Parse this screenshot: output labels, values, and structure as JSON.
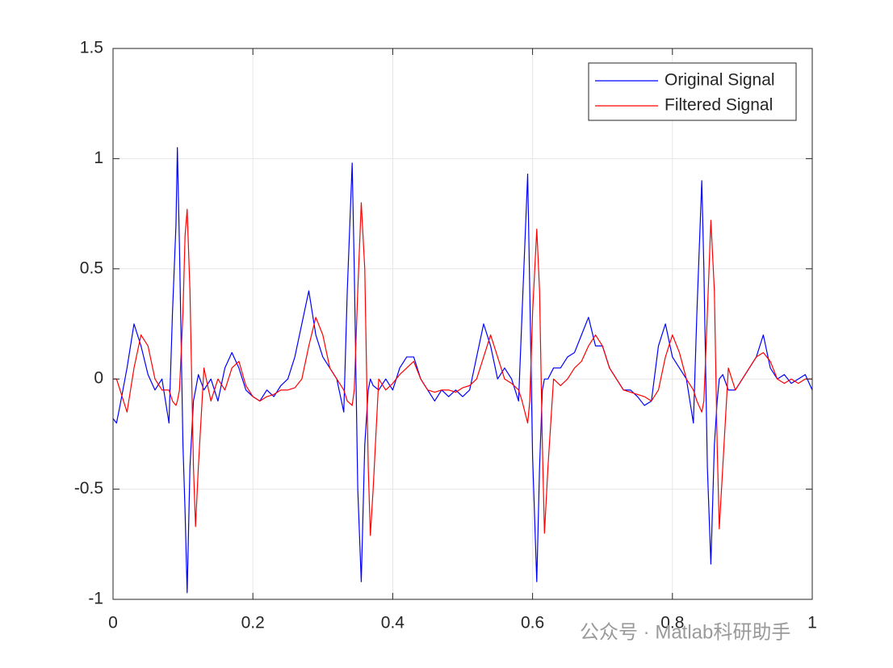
{
  "chart_data": {
    "type": "line",
    "x": [
      0,
      0.005,
      0.01,
      0.02,
      0.03,
      0.04,
      0.05,
      0.06,
      0.07,
      0.08,
      0.085,
      0.09,
      0.092,
      0.095,
      0.1,
      0.103,
      0.106,
      0.11,
      0.115,
      0.118,
      0.122,
      0.13,
      0.14,
      0.15,
      0.16,
      0.17,
      0.18,
      0.19,
      0.2,
      0.21,
      0.22,
      0.23,
      0.24,
      0.25,
      0.26,
      0.27,
      0.28,
      0.29,
      0.3,
      0.31,
      0.32,
      0.33,
      0.335,
      0.342,
      0.345,
      0.35,
      0.355,
      0.36,
      0.365,
      0.368,
      0.372,
      0.38,
      0.39,
      0.4,
      0.41,
      0.42,
      0.43,
      0.44,
      0.45,
      0.46,
      0.47,
      0.48,
      0.49,
      0.5,
      0.51,
      0.52,
      0.53,
      0.54,
      0.55,
      0.56,
      0.57,
      0.58,
      0.585,
      0.593,
      0.596,
      0.6,
      0.606,
      0.61,
      0.614,
      0.617,
      0.622,
      0.63,
      0.64,
      0.65,
      0.66,
      0.67,
      0.68,
      0.69,
      0.7,
      0.71,
      0.72,
      0.73,
      0.74,
      0.75,
      0.76,
      0.77,
      0.78,
      0.79,
      0.8,
      0.81,
      0.82,
      0.83,
      0.835,
      0.842,
      0.845,
      0.85,
      0.855,
      0.86,
      0.864,
      0.867,
      0.872,
      0.88,
      0.89,
      0.9,
      0.91,
      0.92,
      0.93,
      0.94,
      0.95,
      0.96,
      0.97,
      0.98,
      0.99,
      1
    ],
    "series": [
      {
        "name": "Original Signal",
        "color": "#0000ff",
        "values": [
          -0.18,
          -0.2,
          -0.12,
          0.05,
          0.25,
          0.15,
          0.02,
          -0.05,
          0.0,
          -0.2,
          0.3,
          0.7,
          1.05,
          0.6,
          -0.3,
          -0.6,
          -0.97,
          -0.4,
          -0.1,
          -0.05,
          0.02,
          -0.05,
          0.0,
          -0.1,
          0.05,
          0.12,
          0.05,
          -0.05,
          -0.08,
          -0.1,
          -0.05,
          -0.08,
          -0.03,
          0.0,
          0.1,
          0.25,
          0.4,
          0.2,
          0.1,
          0.05,
          0.0,
          -0.15,
          0.4,
          0.98,
          0.5,
          -0.5,
          -0.92,
          -0.3,
          -0.05,
          0.0,
          -0.03,
          -0.05,
          0.0,
          -0.05,
          0.05,
          0.1,
          0.1,
          0.0,
          -0.05,
          -0.1,
          -0.05,
          -0.08,
          -0.05,
          -0.08,
          -0.05,
          0.1,
          0.25,
          0.15,
          0.0,
          0.05,
          0.0,
          -0.1,
          0.3,
          0.93,
          0.4,
          -0.35,
          -0.92,
          -0.4,
          -0.05,
          0.0,
          0.0,
          0.05,
          0.05,
          0.1,
          0.12,
          0.2,
          0.28,
          0.15,
          0.15,
          0.05,
          0.0,
          -0.05,
          -0.05,
          -0.08,
          -0.12,
          -0.1,
          0.15,
          0.25,
          0.1,
          0.05,
          0.0,
          -0.2,
          0.3,
          0.9,
          0.5,
          -0.4,
          -0.84,
          -0.3,
          -0.1,
          0.0,
          0.02,
          -0.05,
          -0.05,
          0.0,
          0.05,
          0.1,
          0.2,
          0.05,
          0.0,
          0.02,
          -0.02,
          0.0,
          0.02,
          -0.05
        ]
      },
      {
        "name": "Filtered Signal",
        "color": "#ff0000",
        "values": [
          0,
          0,
          -0.05,
          -0.15,
          0.05,
          0.2,
          0.15,
          0.0,
          -0.05,
          -0.05,
          -0.1,
          -0.12,
          -0.1,
          -0.05,
          0.3,
          0.65,
          0.77,
          0.4,
          -0.4,
          -0.67,
          -0.4,
          0.05,
          -0.1,
          0.0,
          -0.05,
          0.05,
          0.08,
          -0.03,
          -0.08,
          -0.1,
          -0.08,
          -0.07,
          -0.05,
          -0.05,
          -0.04,
          0.0,
          0.15,
          0.28,
          0.2,
          0.05,
          0.0,
          -0.05,
          -0.1,
          -0.12,
          -0.05,
          0.4,
          0.8,
          0.5,
          -0.4,
          -0.71,
          -0.5,
          0.0,
          -0.05,
          -0.02,
          0.02,
          0.05,
          0.08,
          0.0,
          -0.05,
          -0.06,
          -0.05,
          -0.05,
          -0.06,
          -0.04,
          -0.03,
          0.0,
          0.1,
          0.2,
          0.1,
          0.0,
          -0.02,
          -0.05,
          -0.1,
          -0.2,
          -0.1,
          0.3,
          0.68,
          0.4,
          -0.3,
          -0.7,
          -0.4,
          0.0,
          -0.03,
          0.0,
          0.05,
          0.08,
          0.15,
          0.2,
          0.15,
          0.05,
          0.0,
          -0.05,
          -0.06,
          -0.07,
          -0.08,
          -0.1,
          -0.05,
          0.1,
          0.2,
          0.12,
          0.0,
          -0.05,
          -0.1,
          -0.15,
          -0.1,
          0.3,
          0.72,
          0.4,
          -0.3,
          -0.68,
          -0.4,
          0.05,
          -0.05,
          0.0,
          0.05,
          0.1,
          0.12,
          0.08,
          0.0,
          -0.02,
          0.0,
          -0.02,
          0.0,
          0.0
        ]
      }
    ],
    "xlim": [
      0,
      1
    ],
    "xticks": [
      0,
      0.2,
      0.4,
      0.6,
      0.8,
      1
    ],
    "ylim": [
      -1,
      1.5
    ],
    "yticks": [
      -1,
      -0.5,
      0,
      0.5,
      1,
      1.5
    ],
    "grid": true,
    "legend": "top-right"
  },
  "watermark": "公众号 · Matlab科研助手"
}
